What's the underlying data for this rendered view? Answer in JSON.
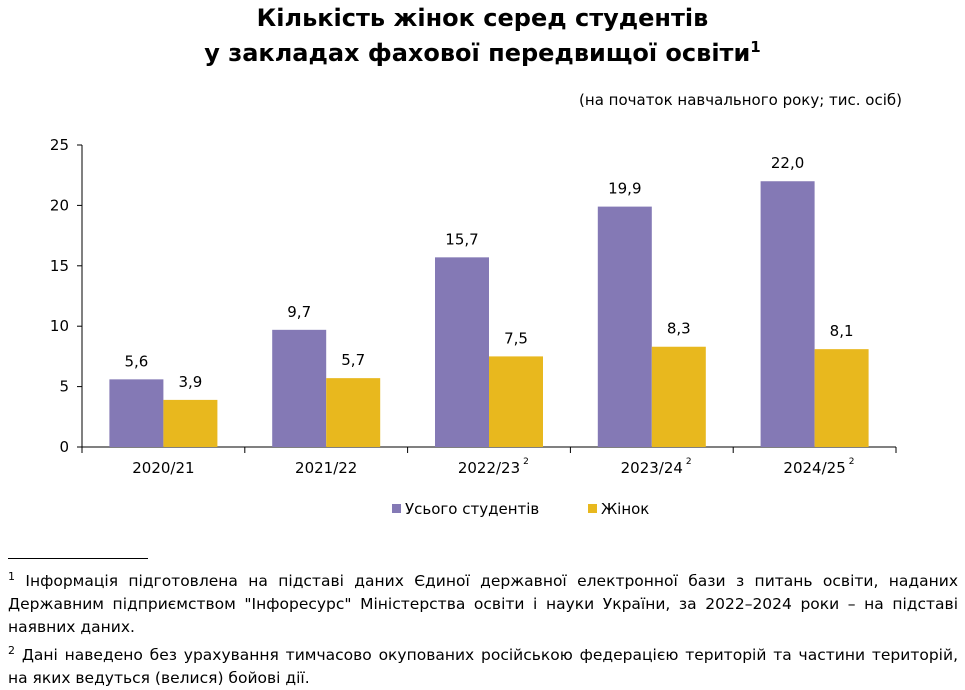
{
  "title": {
    "line1": "Кількість жінок серед студентів",
    "line2": "у закладах фахової передвищої освіти",
    "line2_sup": "1"
  },
  "subtitle": "(на початок навчального року; тис. осіб)",
  "chart_data": {
    "type": "bar",
    "categories": [
      "2020/21",
      "2021/22",
      "2022/23",
      "2023/24",
      "2024/25"
    ],
    "category_superscripts": [
      "",
      "",
      "2",
      "2",
      "2"
    ],
    "series": [
      {
        "name": "Усього студентів",
        "values": [
          5.6,
          9.7,
          15.7,
          19.9,
          22.0
        ],
        "labels": [
          "5,6",
          "9,7",
          "15,7",
          "19,9",
          "22,0"
        ],
        "color": "#8479b5"
      },
      {
        "name": "Жінок",
        "values": [
          3.9,
          5.7,
          7.5,
          8.3,
          8.1
        ],
        "labels": [
          "3,9",
          "5,7",
          "7,5",
          "8,3",
          "8,1"
        ],
        "color": "#e8b81e"
      }
    ],
    "ylim": [
      0,
      25
    ],
    "yticks": [
      0,
      5,
      10,
      15,
      20,
      25
    ],
    "grid": false,
    "legend_position": "bottom"
  },
  "footnotes": [
    {
      "mark": "1",
      "text": "Інформація підготовлена на підставі даних Єдиної державної електронної бази з питань освіти, наданих Державним підприємством \"Інфоресурс\" Міністерства освіти і науки України, за 2022–2024 роки – на підставі наявних даних."
    },
    {
      "mark": "2",
      "text": "Дані наведено без урахування тимчасово окупованих російською федерацією територій та частини територій, на яких ведуться (велися) бойові дії."
    }
  ]
}
